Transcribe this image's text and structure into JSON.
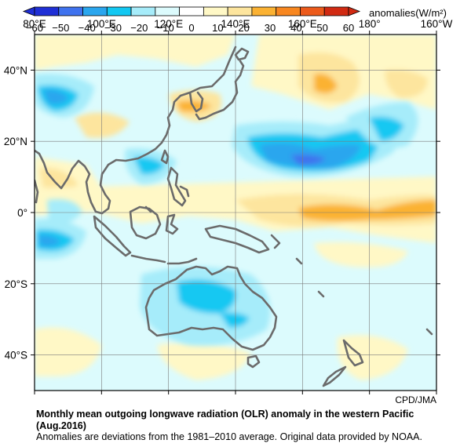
{
  "map": {
    "lon_ticks": [
      "80°E",
      "100°E",
      "120°E",
      "140°E",
      "160°E",
      "180°",
      "160°W"
    ],
    "lat_ticks": [
      "40°N",
      "20°N",
      "0°",
      "20°S",
      "40°S"
    ],
    "lon_range": [
      80,
      200
    ],
    "lat_range": [
      -50,
      50
    ],
    "credit": "CPD/JMA"
  },
  "colorbar": {
    "unit_label": "anomalies(W/m²)",
    "ticks": [
      "−60",
      "−50",
      "−40",
      "−30",
      "−20",
      "−10",
      "0",
      "10",
      "20",
      "30",
      "40",
      "50",
      "60"
    ],
    "colors": [
      "#1f2fd6",
      "#3f72ee",
      "#2aa6ee",
      "#12c8f2",
      "#a6ecfa",
      "#dcfbfd",
      "#ffffff",
      "#fff8c6",
      "#fde59e",
      "#fbb233",
      "#f88720",
      "#ec5a1b",
      "#d12a12"
    ]
  },
  "caption": {
    "title": "Monthly mean outgoing longwave radiation (OLR) anomaly in the western Pacific (Aug.2016)",
    "note": "Anomalies are deviations from the 1981–2010 average. Original data provided by NOAA."
  },
  "anomaly_features": [
    {
      "region": "North Pacific east of Japan (~20°N, 150–175°E)",
      "level": "-50 to -30"
    },
    {
      "region": "Central Australia",
      "level": "-30 to -20"
    },
    {
      "region": "Tibet / north China (~40°N, 80–90°E)",
      "level": "-30 to -20"
    },
    {
      "region": "Equatorial central Pacific (~0–5°N, 175°E–160°W)",
      "level": "+20 to +30"
    },
    {
      "region": "East of Japan (~40°N, 160–170°E)",
      "level": "+20 to +30"
    }
  ]
}
